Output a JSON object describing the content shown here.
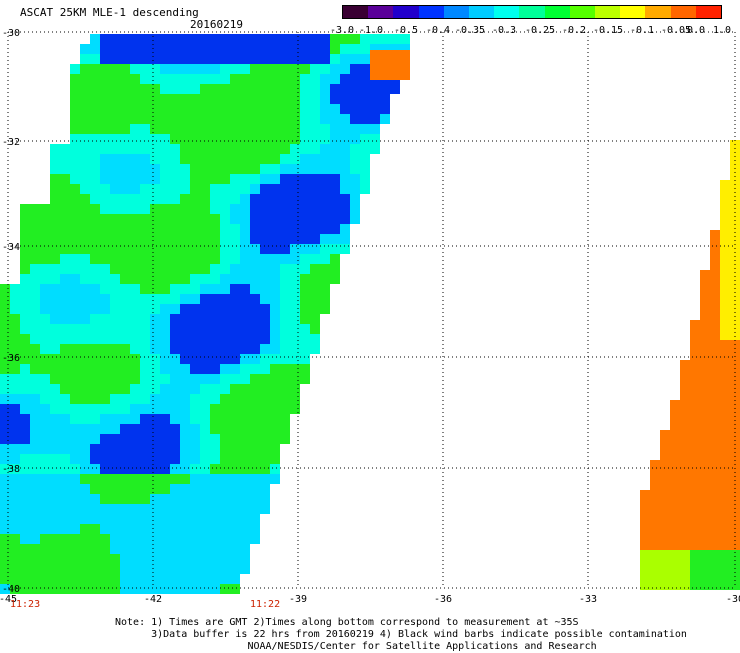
{
  "header": {
    "title": "ASCAT 25KM MLE-1 descending",
    "date": "20160219"
  },
  "colorbar": {
    "colors": [
      "#3a0033",
      "#5a0099",
      "#2200cc",
      "#0033ff",
      "#0088ff",
      "#00ccff",
      "#00ffee",
      "#00ff99",
      "#00ff33",
      "#55ff00",
      "#bbff00",
      "#ffff00",
      "#ffaa00",
      "#ff6600",
      "#ff2200"
    ],
    "labels": [
      "-3.0",
      "-1.0",
      "-0.5",
      "-0.4",
      "-0.35",
      "-0.3",
      "-0.25",
      "-0.2",
      "-0.15",
      "-0.1",
      "-0.05",
      "0.0",
      "1.0"
    ]
  },
  "axes": {
    "y_labels": [
      "-30",
      "-32",
      "-34",
      "-36",
      "-38",
      "-40"
    ],
    "x_labels": [
      "-45",
      "-42",
      "-39",
      "-36",
      "-33",
      "-30"
    ]
  },
  "map_colors": {
    "blue": "#0033ee",
    "light_blue": "#00ddff",
    "cyan": "#00ffdd",
    "green": "#22ee22",
    "orange": "#ff7700"
  },
  "times": {
    "left": "11:23",
    "right": "11:22"
  },
  "note": {
    "line1": "Note: 1) Times are GMT 2)Times along bottom correspond to measurement at ~35S",
    "line2": "      3)Data buffer is 22 hrs from 20160219 4) Black wind barbs indicate possible contamination",
    "line3": "                      NOAA/NESDIS/Center for Satellite Applications and Research"
  }
}
